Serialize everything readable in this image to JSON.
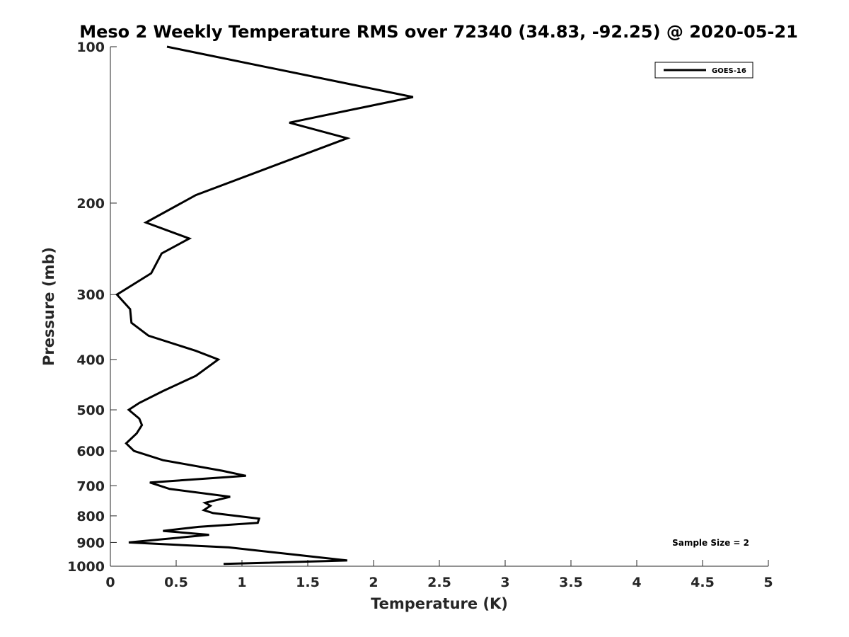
{
  "chart_data": {
    "type": "line",
    "title": "Meso 2 Weekly Temperature RMS over 72340 (34.83, -92.25) @ 2020-05-21",
    "xlabel": "Temperature (K)",
    "ylabel": "Pressure (mb)",
    "xlim": [
      0,
      5
    ],
    "ylim": [
      100,
      1000
    ],
    "y_scale": "log",
    "y_reversed": true,
    "x_ticks": [
      0,
      0.5,
      1,
      1.5,
      2,
      2.5,
      3,
      3.5,
      4,
      4.5,
      5
    ],
    "x_tick_labels": [
      "0",
      "0.5",
      "1",
      "1.5",
      "2",
      "2.5",
      "3",
      "3.5",
      "4",
      "4.5",
      "5"
    ],
    "y_ticks": [
      100,
      200,
      300,
      400,
      500,
      600,
      700,
      800,
      900,
      1000
    ],
    "y_tick_labels": [
      "100",
      "200",
      "300",
      "400",
      "500",
      "600",
      "700",
      "800",
      "900",
      "1000"
    ],
    "grid": false,
    "legend_position": "top-right",
    "annotation": "Sample Size = 2",
    "series": [
      {
        "name": "GOES-16",
        "color": "#000000",
        "x": [
          0.43,
          2.3,
          1.36,
          1.8,
          1.15,
          0.65,
          0.27,
          0.6,
          0.39,
          0.31,
          0.05,
          0.15,
          0.16,
          0.29,
          0.65,
          0.82,
          0.65,
          0.4,
          0.22,
          0.14,
          0.22,
          0.24,
          0.2,
          0.12,
          0.18,
          0.4,
          0.85,
          1.03,
          0.3,
          0.45,
          0.91,
          0.72,
          0.76,
          0.71,
          0.78,
          1.13,
          1.12,
          0.67,
          0.4,
          0.75,
          0.14,
          0.9,
          1.4,
          1.8,
          0.86
        ],
        "y": [
          100,
          125,
          140,
          150,
          173,
          193,
          218,
          234,
          250,
          273,
          300,
          320,
          340,
          360,
          385,
          400,
          430,
          460,
          485,
          500,
          520,
          535,
          555,
          580,
          600,
          625,
          655,
          670,
          690,
          710,
          735,
          755,
          765,
          780,
          790,
          810,
          825,
          840,
          855,
          870,
          900,
          920,
          950,
          975,
          990
        ]
      }
    ]
  }
}
